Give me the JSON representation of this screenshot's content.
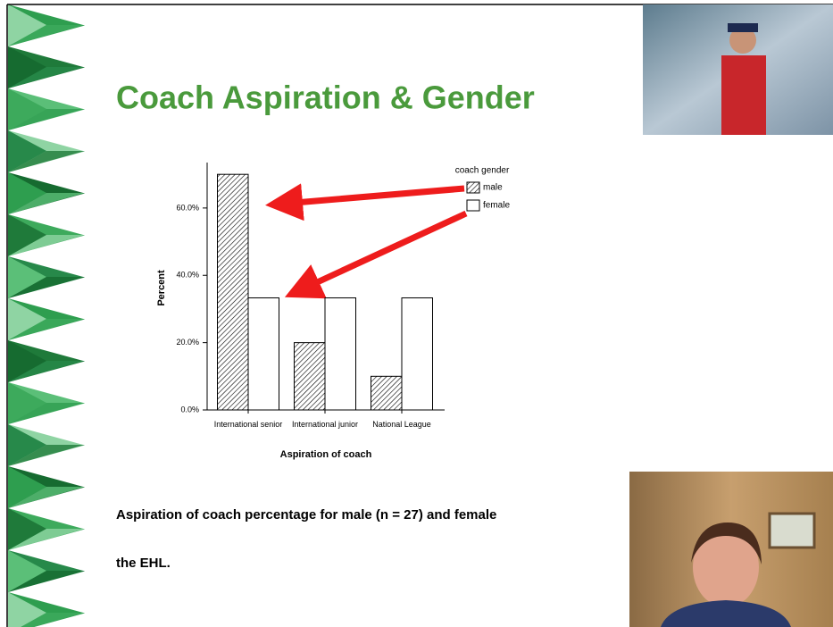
{
  "slide": {
    "title": "Coach Aspiration & Gender",
    "caption_line1": "Aspiration of coach percentage for male (n = 27) and female",
    "caption_line2": "the EHL."
  },
  "chart_data": {
    "type": "bar",
    "categories": [
      "International senior",
      "International junior",
      "National League"
    ],
    "series": [
      {
        "name": "male",
        "color": "#000000",
        "values": [
          70,
          20,
          10
        ]
      },
      {
        "name": "female",
        "color": "#ffffff",
        "values": [
          33.3,
          33.3,
          33.3
        ]
      }
    ],
    "legend_title": "coach gender",
    "x_label": "Aspiration of coach",
    "y_label": "Percent",
    "ylim": [
      0,
      73.5
    ],
    "yticks": [
      {
        "value": 0,
        "label": "0.0%"
      },
      {
        "value": 20,
        "label": "20.0%"
      },
      {
        "value": 40,
        "label": "40.0%"
      },
      {
        "value": 60,
        "label": "60.0%"
      }
    ],
    "legend": "upper right"
  }
}
